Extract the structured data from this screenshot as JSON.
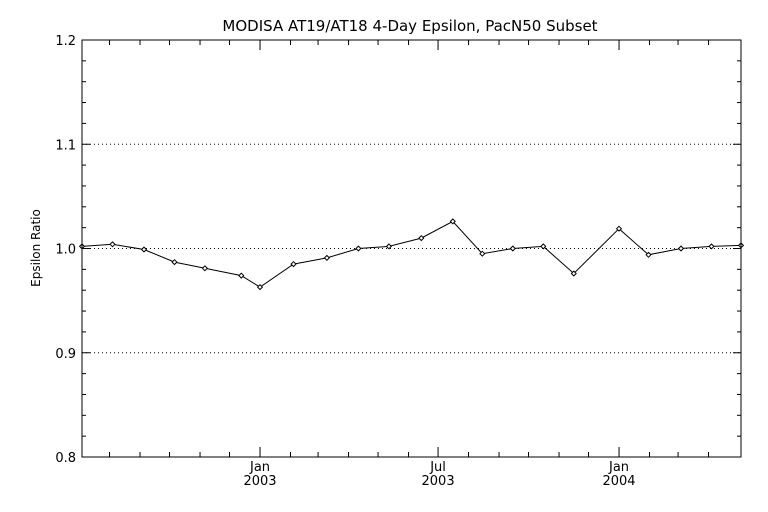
{
  "chart_data": {
    "type": "line",
    "title": "MODISA AT19/AT18 4-Day Epsilon, PacN50 Subset",
    "xlabel": "",
    "ylabel": "Epsilon Ratio",
    "ylim": [
      0.8,
      1.2
    ],
    "y_ticks": [
      "0.8",
      "0.9",
      "1.0",
      "1.1",
      "1.2"
    ],
    "y_gridlines": [
      0.9,
      1.0,
      1.1
    ],
    "grid": "dotted horizontal at 0.9, 1.0, 1.1",
    "x_range": [
      "2002-07-04",
      "2004-05-04"
    ],
    "x_major_ticks": [
      {
        "date": "2003-01-01",
        "month": "Jan",
        "year": "2003"
      },
      {
        "date": "2003-07-01",
        "month": "Jul",
        "year": "2003"
      },
      {
        "date": "2004-01-01",
        "month": "Jan",
        "year": "2004"
      }
    ],
    "x_minor_tick_dates": [
      "2002-08-01",
      "2002-09-01",
      "2002-10-01",
      "2002-11-01",
      "2002-12-01",
      "2003-02-01",
      "2003-03-01",
      "2003-04-01",
      "2003-05-01",
      "2003-06-01",
      "2003-08-01",
      "2003-09-01",
      "2003-10-01",
      "2003-11-01",
      "2003-12-01",
      "2004-02-01",
      "2004-03-01",
      "2004-04-01"
    ],
    "series": [
      {
        "marker": "diamond",
        "color": "#000000",
        "points": [
          {
            "x": "2002-07-04",
            "y": 1.002
          },
          {
            "x": "2002-08-04",
            "y": 1.004
          },
          {
            "x": "2002-09-05",
            "y": 0.999
          },
          {
            "x": "2002-10-06",
            "y": 0.987
          },
          {
            "x": "2002-11-06",
            "y": 0.981
          },
          {
            "x": "2002-12-13",
            "y": 0.974
          },
          {
            "x": "2003-01-01",
            "y": 0.963
          },
          {
            "x": "2003-02-04",
            "y": 0.985
          },
          {
            "x": "2003-03-10",
            "y": 0.991
          },
          {
            "x": "2003-04-11",
            "y": 1.0
          },
          {
            "x": "2003-05-12",
            "y": 1.002
          },
          {
            "x": "2003-06-14",
            "y": 1.01
          },
          {
            "x": "2003-07-16",
            "y": 1.026
          },
          {
            "x": "2003-08-15",
            "y": 0.995
          },
          {
            "x": "2003-09-15",
            "y": 1.0
          },
          {
            "x": "2003-10-16",
            "y": 1.002
          },
          {
            "x": "2003-11-16",
            "y": 0.976
          },
          {
            "x": "2004-01-01",
            "y": 1.019
          },
          {
            "x": "2004-01-31",
            "y": 0.994
          },
          {
            "x": "2004-03-04",
            "y": 1.0
          },
          {
            "x": "2004-04-04",
            "y": 1.002
          },
          {
            "x": "2004-05-04",
            "y": 1.003
          }
        ]
      }
    ]
  }
}
